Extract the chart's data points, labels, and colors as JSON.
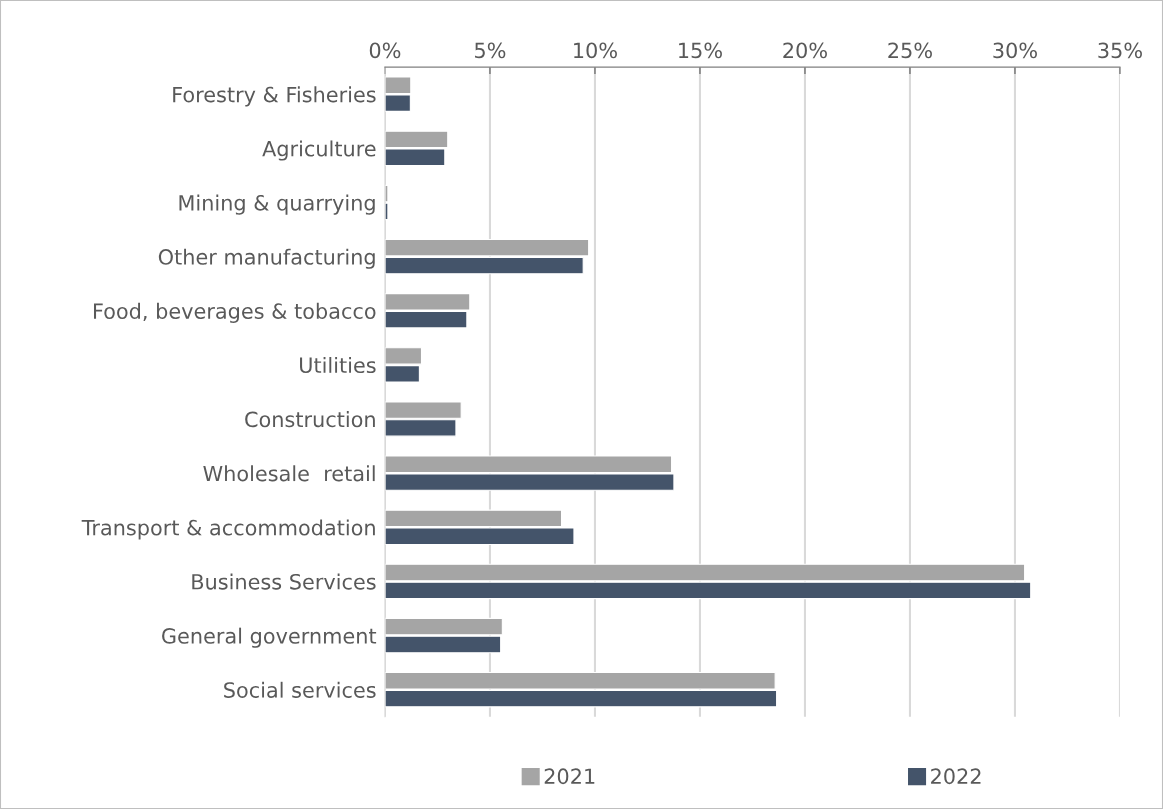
{
  "chart_data": {
    "type": "bar",
    "orientation": "horizontal",
    "categories": [
      "Forestry & Fisheries",
      "Agriculture",
      "Mining & quarrying",
      "Other manufacturing",
      "Food, beverages & tobacco",
      "Utilities",
      "Construction",
      "Wholesale  retail",
      "Transport & accommodation",
      "Business Services",
      "General government",
      "Social services"
    ],
    "series": [
      {
        "name": "2021",
        "color": "#a5a5a5",
        "values": [
          1.23,
          2.99,
          0.14,
          9.7,
          4.04,
          1.74,
          3.63,
          13.65,
          8.41,
          30.46,
          5.59,
          18.58
        ]
      },
      {
        "name": "2022",
        "color": "#44546a",
        "values": [
          1.21,
          2.85,
          0.14,
          9.44,
          3.9,
          1.64,
          3.38,
          13.76,
          9.0,
          30.75,
          5.51,
          18.65
        ]
      }
    ],
    "xlim": [
      0,
      35
    ],
    "xticks": [
      {
        "value": 0,
        "label": "0%"
      },
      {
        "value": 5,
        "label": "5%"
      },
      {
        "value": 10,
        "label": "10%"
      },
      {
        "value": 15,
        "label": "15%"
      },
      {
        "value": 20,
        "label": "20%"
      },
      {
        "value": 25,
        "label": "25%"
      },
      {
        "value": 30,
        "label": "30%"
      },
      {
        "value": 35,
        "label": "35%"
      }
    ],
    "grid": "x",
    "legend": "bottom"
  }
}
